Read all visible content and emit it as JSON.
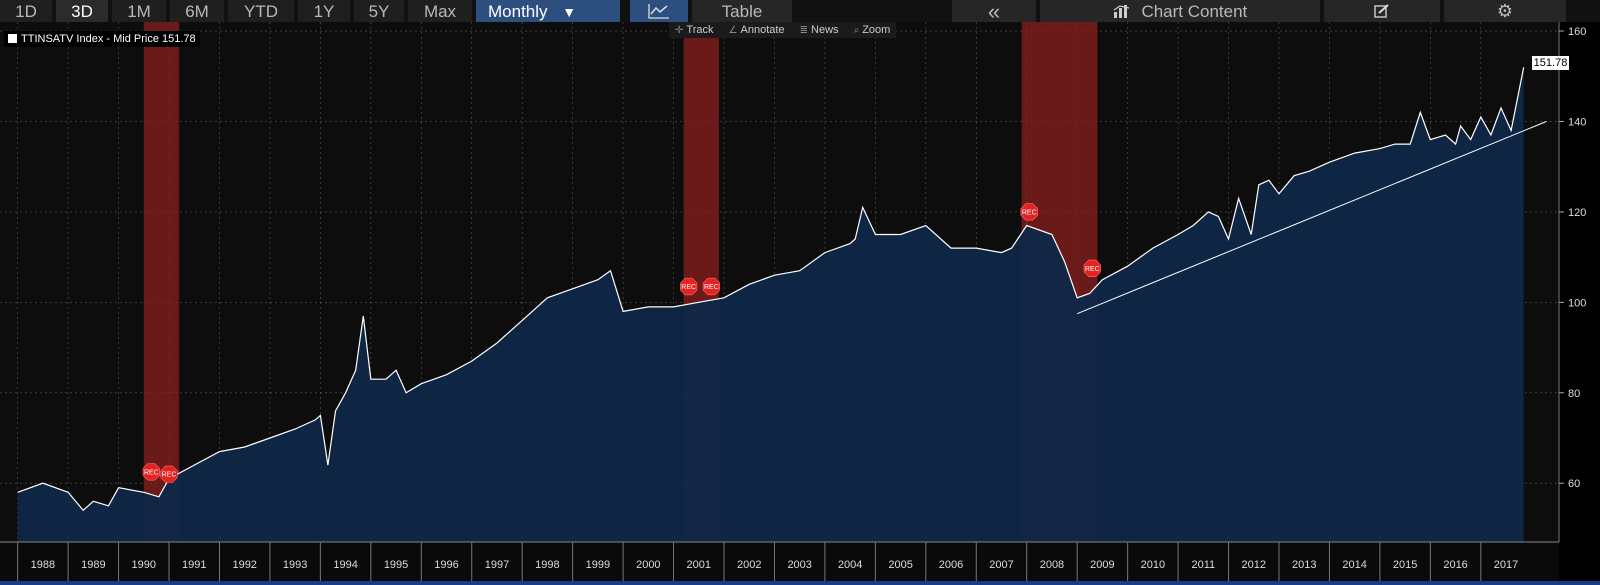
{
  "toolbar": {
    "ranges": [
      "1D",
      "3D",
      "1M",
      "6M",
      "YTD",
      "1Y",
      "5Y",
      "Max"
    ],
    "active_range": "3D",
    "frequency": "Monthly",
    "frequency_arrow": "▼",
    "chart_icon": "line-chart-icon",
    "table_label": "Table",
    "collapse_glyph": "«",
    "chart_content_label": "Chart Content",
    "chart_content_icon": "bar-chart-icon",
    "edit_icon": "edit-icon",
    "settings_icon": "gear-icon"
  },
  "subtools": {
    "track": "Track",
    "annotate": "Annotate",
    "news": "News",
    "zoom": "Zoom"
  },
  "legend": {
    "text": "TTINSATV Index - Mid Price 151.78"
  },
  "last_price_label": "151.78",
  "colors": {
    "background": "#0d0d0d",
    "area_fill": "#0f2748",
    "line": "#ffffff",
    "recession": "#8b1f1f",
    "rec_marker": "#e52222",
    "active_button": "#2c4f80",
    "accent_bar": "#1a3a8c"
  },
  "chart_data": {
    "type": "area",
    "series": [
      {
        "name": "TTINSATV Index - Mid Price",
        "x": [
          1988.0,
          1988.5,
          1989.0,
          1989.3,
          1989.5,
          1989.8,
          1990.0,
          1990.5,
          1990.8,
          1991.0,
          1991.5,
          1992.0,
          1992.5,
          1993.0,
          1993.5,
          1993.9,
          1994.0,
          1994.15,
          1994.3,
          1994.5,
          1994.7,
          1994.85,
          1995.0,
          1995.3,
          1995.5,
          1995.7,
          1996.0,
          1996.5,
          1997.0,
          1997.5,
          1998.0,
          1998.5,
          1999.0,
          1999.5,
          1999.75,
          2000.0,
          2000.5,
          2001.0,
          2001.5,
          2002.0,
          2002.5,
          2003.0,
          2003.5,
          2004.0,
          2004.5,
          2004.6,
          2004.75,
          2005.0,
          2005.5,
          2006.0,
          2006.5,
          2007.0,
          2007.5,
          2007.7,
          2008.0,
          2008.5,
          2008.75,
          2009.0,
          2009.25,
          2009.5,
          2010.0,
          2010.5,
          2011.0,
          2011.3,
          2011.6,
          2011.8,
          2012.0,
          2012.2,
          2012.45,
          2012.6,
          2012.8,
          2013.0,
          2013.3,
          2013.6,
          2014.0,
          2014.5,
          2015.0,
          2015.3,
          2015.5,
          2015.6,
          2015.8,
          2016.0,
          2016.3,
          2016.5,
          2016.6,
          2016.8,
          2017.0,
          2017.2,
          2017.4,
          2017.6,
          2017.85
        ],
        "values": [
          58,
          60,
          58,
          54,
          56,
          55,
          59,
          58,
          57,
          61,
          64,
          67,
          68,
          70,
          72,
          74,
          75,
          64,
          76,
          80,
          85,
          97,
          83,
          83,
          85,
          80,
          82,
          84,
          87,
          91,
          96,
          101,
          103,
          105,
          107,
          98,
          99,
          99,
          100,
          101,
          104,
          106,
          107,
          111,
          113,
          114,
          121,
          115,
          115,
          117,
          112,
          112,
          111,
          112,
          117,
          115,
          109,
          101,
          102,
          105,
          108,
          112,
          115,
          117,
          120,
          119,
          114,
          123,
          115,
          126,
          127,
          124,
          128,
          129,
          131,
          133,
          134,
          135,
          135,
          135,
          142,
          136,
          137,
          135,
          139,
          136,
          141,
          137,
          143,
          138,
          152
        ]
      },
      {
        "name": "Trend line",
        "x": [
          2009.0,
          2018.3
        ],
        "values": [
          97.5,
          140
        ]
      }
    ],
    "recessions": [
      [
        1990.5,
        1991.2
      ],
      [
        2001.2,
        2001.9
      ],
      [
        2007.9,
        2009.4
      ]
    ],
    "rec_label": "REC",
    "rec_markers": [
      [
        1990.65,
        62.5
      ],
      [
        1991.0,
        62.0
      ],
      [
        2001.3,
        103.5
      ],
      [
        2001.75,
        103.5
      ],
      [
        2008.05,
        120.0
      ],
      [
        2009.3,
        107.5
      ]
    ],
    "x_ticks": [
      1988,
      1989,
      1990,
      1991,
      1992,
      1993,
      1994,
      1995,
      1996,
      1997,
      1998,
      1999,
      2000,
      2001,
      2002,
      2003,
      2004,
      2005,
      2006,
      2007,
      2008,
      2009,
      2010,
      2011,
      2012,
      2013,
      2014,
      2015,
      2016,
      2017
    ],
    "y_ticks": [
      60,
      80,
      100,
      120,
      140,
      160
    ],
    "xlim": [
      1987.65,
      2018.55
    ],
    "ylim": [
      47,
      162
    ],
    "last_value": 151.78,
    "grid": true
  }
}
